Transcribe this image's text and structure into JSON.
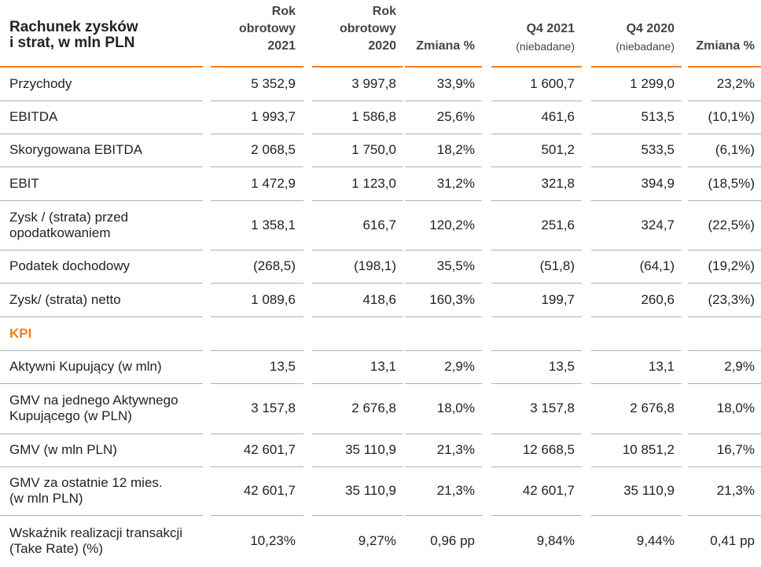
{
  "header": {
    "title_line1": "Rachunek zysków",
    "title_line2": "i strat, w mln PLN",
    "cols": [
      {
        "l1": "Rok",
        "l2": "obrotowy",
        "l3": "2021"
      },
      {
        "l1": "Rok",
        "l2": "obrotowy",
        "l3": "2020"
      },
      {
        "l1": "",
        "l2": "",
        "l3": "Zmiana %"
      },
      {
        "l1": "",
        "l2": "Q4 2021",
        "l3": "(niebadane)"
      },
      {
        "l1": "",
        "l2": "Q4 2020",
        "l3": "(niebadane)"
      },
      {
        "l1": "",
        "l2": "",
        "l3": "Zmiana %"
      }
    ]
  },
  "section_kpi": "KPI",
  "rows": [
    {
      "label1": "Przychody",
      "label2": "",
      "values": [
        "5 352,9",
        "3 997,8",
        "33,9%",
        "1 600,7",
        "1 299,0",
        "23,2%"
      ]
    },
    {
      "label1": "EBITDA",
      "label2": "",
      "values": [
        "1 993,7",
        "1 586,8",
        "25,6%",
        "461,6",
        "513,5",
        "(10,1%)"
      ]
    },
    {
      "label1": "Skorygowana EBITDA",
      "label2": "",
      "values": [
        "2 068,5",
        "1 750,0",
        "18,2%",
        "501,2",
        "533,5",
        "(6,1%)"
      ]
    },
    {
      "label1": "EBIT",
      "label2": "",
      "values": [
        "1 472,9",
        "1 123,0",
        "31,2%",
        "321,8",
        "394,9",
        "(18,5%)"
      ]
    },
    {
      "label1": "Zysk / (strata) przed",
      "label2": "opodatkowaniem",
      "values": [
        "1 358,1",
        "616,7",
        "120,2%",
        "251,6",
        "324,7",
        "(22,5%)"
      ]
    },
    {
      "label1": "Podatek dochodowy",
      "label2": "",
      "values": [
        "(268,5)",
        "(198,1)",
        "35,5%",
        "(51,8)",
        "(64,1)",
        "(19,2%)"
      ]
    },
    {
      "label1": "Zysk/ (strata) netto",
      "label2": "",
      "values": [
        "1 089,6",
        "418,6",
        "160,3%",
        "199,7",
        "260,6",
        "(23,3%)"
      ]
    },
    {
      "label1": "Aktywni Kupujący (w mln)",
      "label2": "",
      "values": [
        "13,5",
        "13,1",
        "2,9%",
        "13,5",
        "13,1",
        "2,9%"
      ]
    },
    {
      "label1": "GMV na jednego Aktywnego",
      "label2": "Kupującego (w PLN)",
      "values": [
        "3 157,8",
        "2 676,8",
        "18,0%",
        "3 157,8",
        "2 676,8",
        "18,0%"
      ]
    },
    {
      "label1": "GMV (w mln PLN)",
      "label2": "",
      "values": [
        "42 601,7",
        "35 110,9",
        "21,3%",
        "12 668,5",
        "10 851,2",
        "16,7%"
      ]
    },
    {
      "label1": "GMV za ostatnie 12 mies.",
      "label2": "(w mln PLN)",
      "values": [
        "42 601,7",
        "35 110,9",
        "21,3%",
        "42 601,7",
        "35 110,9",
        "21,3%"
      ]
    },
    {
      "label1": "Wskaźnik realizacji transakcji",
      "label2": "(Take Rate) (%)",
      "values": [
        "10,23%",
        "9,27%",
        "0,96 pp",
        "9,84%",
        "9,44%",
        "0,41 pp"
      ]
    }
  ]
}
